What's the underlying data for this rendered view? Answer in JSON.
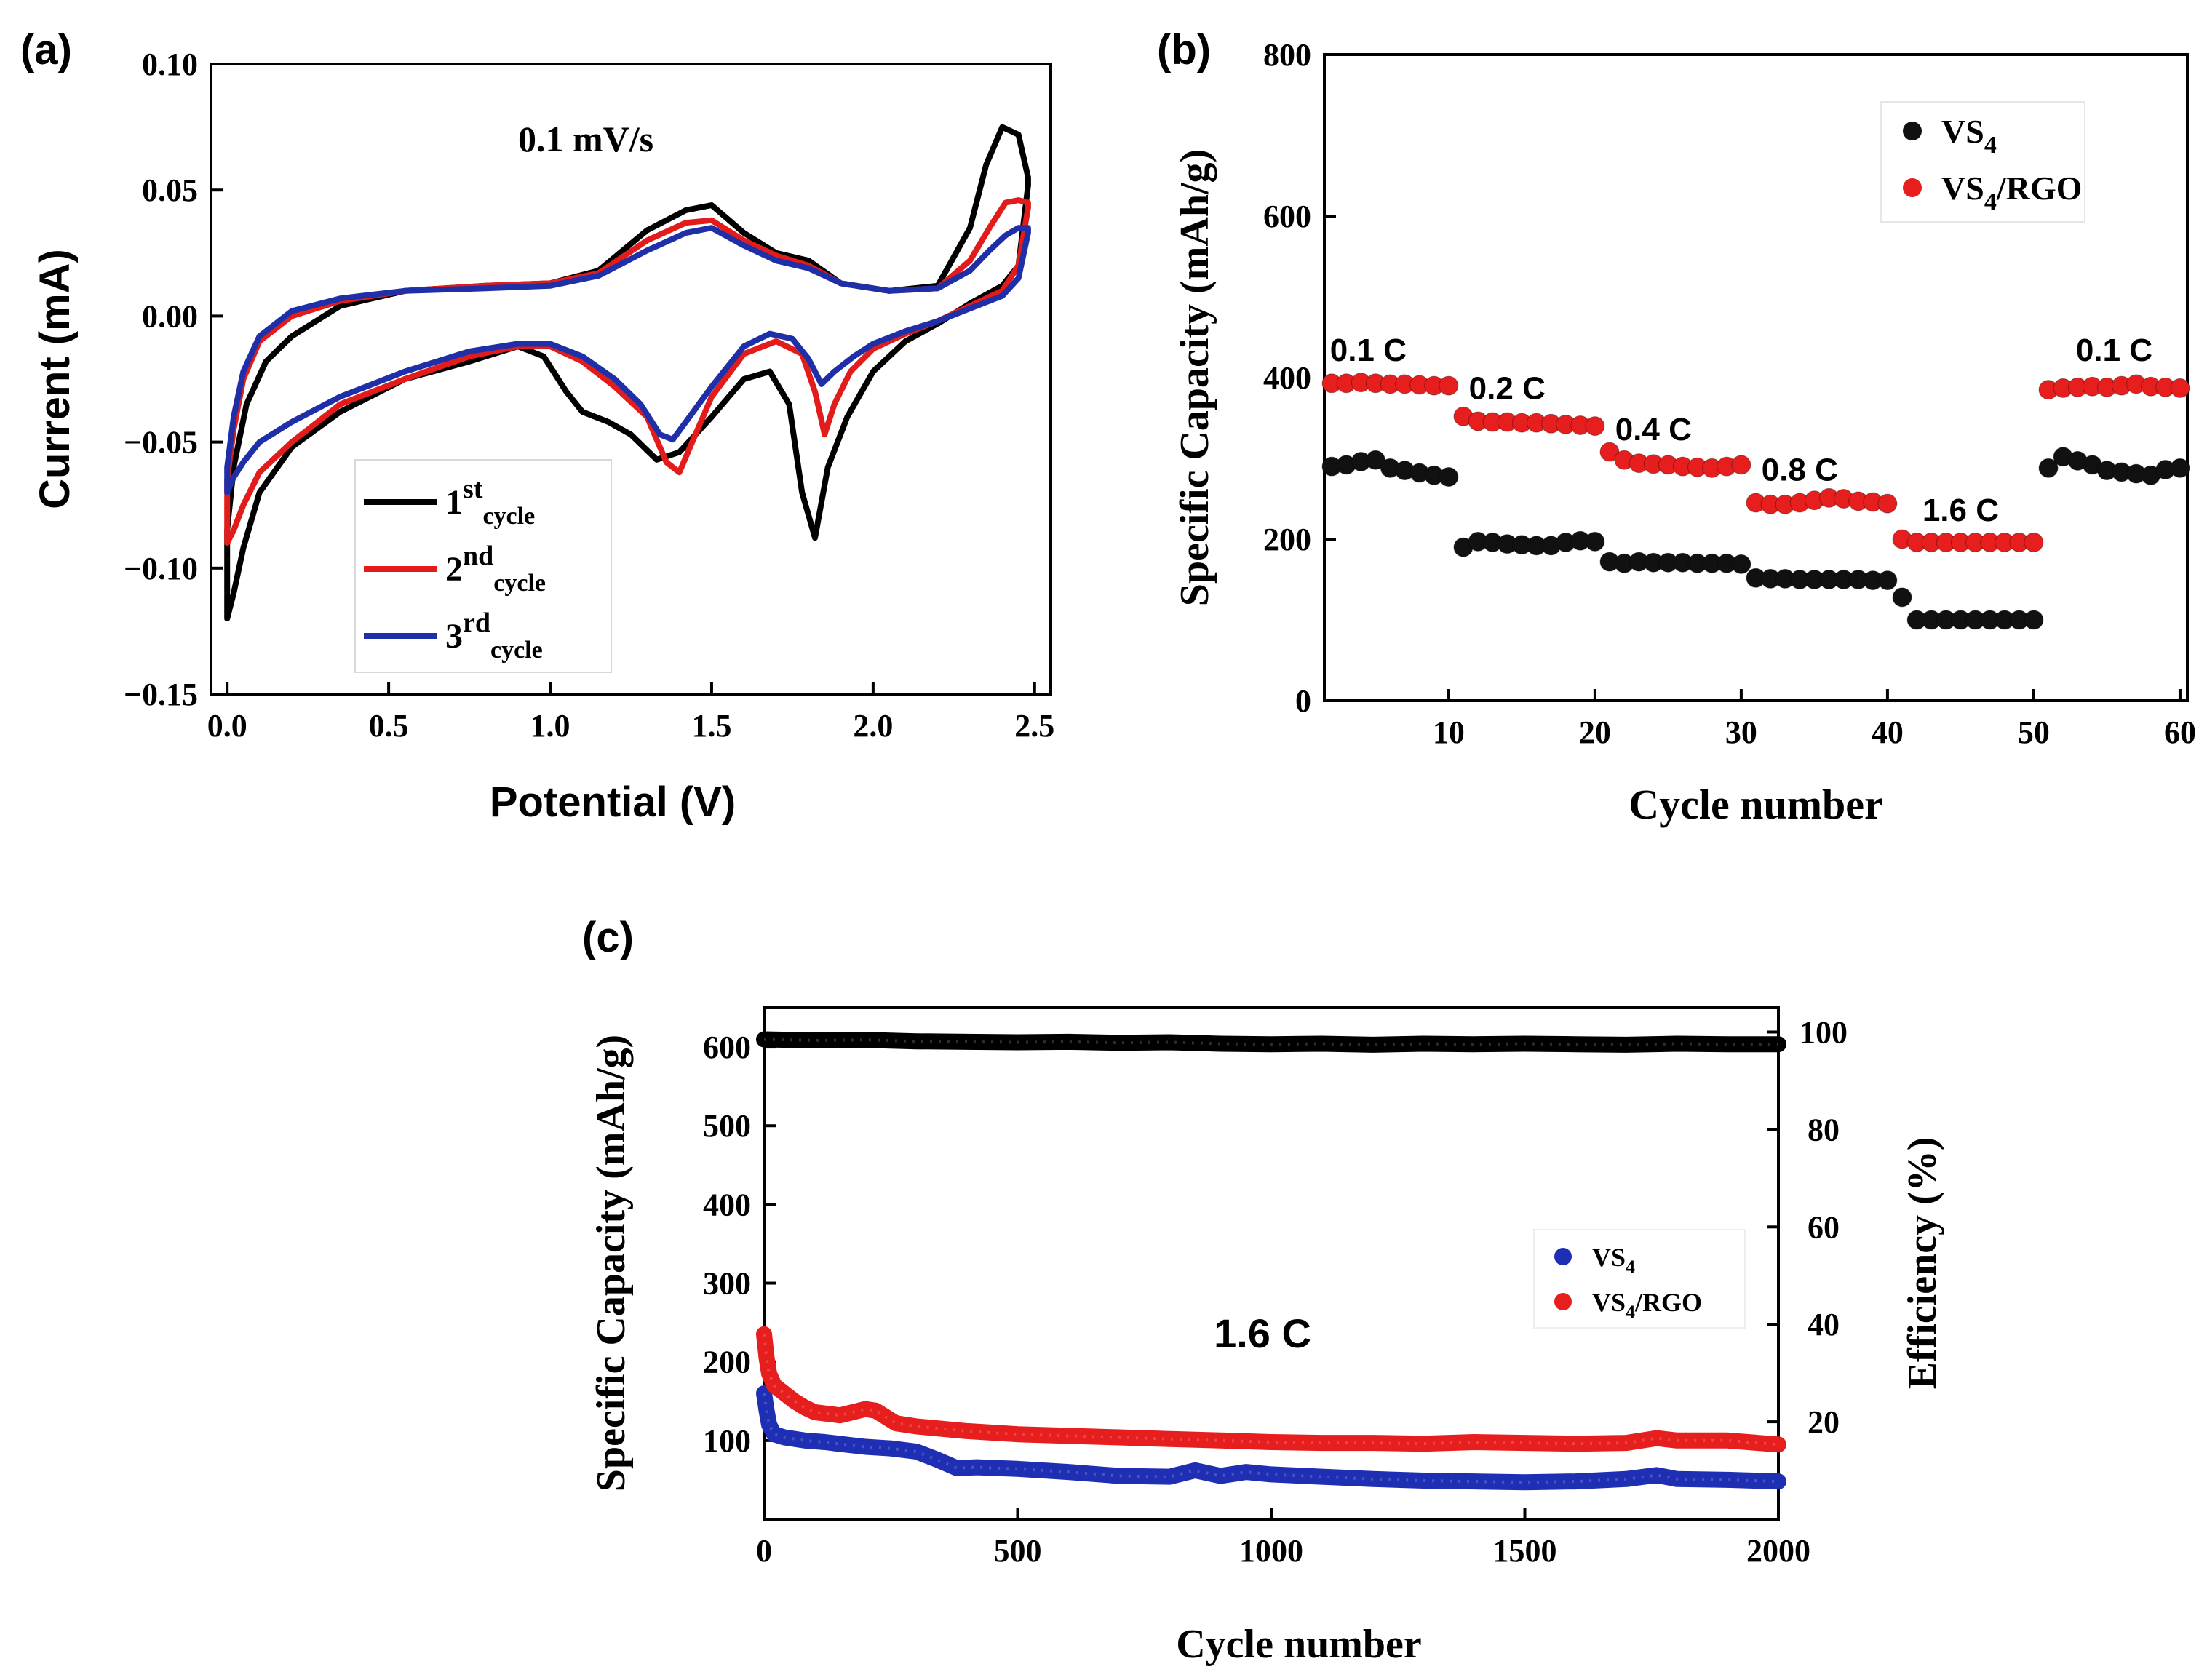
{
  "figure": {
    "panel_labels": [
      "(a)",
      "(b)",
      "(c)"
    ]
  },
  "chart_data": [
    {
      "id": "a",
      "type": "line",
      "annotation": "0.1 mV/s",
      "xlabel": "Potential (V)",
      "ylabel": "Current (mA)",
      "xlim": [
        -0.05,
        2.55
      ],
      "ylim": [
        -0.15,
        0.1
      ],
      "xticks": [
        "0.0",
        "0.5",
        "1.0",
        "1.5",
        "2.0",
        "2.5"
      ],
      "yticks": [
        "-0.15",
        "-0.10",
        "-0.05",
        "0.00",
        "0.05",
        "0.10"
      ],
      "legend_position": "lower-center",
      "series": [
        {
          "name": "1st cycle",
          "base": "1",
          "sup": "st",
          "sub": "cycle",
          "color": "#000000",
          "x": [
            0.0,
            0.02,
            0.06,
            0.12,
            0.2,
            0.35,
            0.55,
            0.8,
            1.0,
            1.15,
            1.3,
            1.42,
            1.5,
            1.6,
            1.7,
            1.8,
            1.9,
            2.05,
            2.2,
            2.3,
            2.35,
            2.4,
            2.45,
            2.48,
            2.48,
            2.45,
            2.4,
            2.3,
            2.2,
            2.1,
            2.0,
            1.92,
            1.86,
            1.82,
            1.78,
            1.74,
            1.68,
            1.6,
            1.5,
            1.4,
            1.33,
            1.25,
            1.18,
            1.1,
            1.05,
            0.98,
            0.9,
            0.75,
            0.55,
            0.35,
            0.2,
            0.1,
            0.05,
            0.02,
            0.0
          ],
          "y": [
            -0.085,
            -0.06,
            -0.035,
            -0.018,
            -0.008,
            0.004,
            0.01,
            0.012,
            0.013,
            0.018,
            0.034,
            0.042,
            0.044,
            0.033,
            0.025,
            0.022,
            0.013,
            0.01,
            0.012,
            0.035,
            0.06,
            0.075,
            0.072,
            0.055,
            0.052,
            0.02,
            0.012,
            0.005,
            -0.003,
            -0.01,
            -0.022,
            -0.04,
            -0.06,
            -0.088,
            -0.07,
            -0.035,
            -0.022,
            -0.025,
            -0.04,
            -0.054,
            -0.057,
            -0.047,
            -0.042,
            -0.038,
            -0.03,
            -0.016,
            -0.012,
            -0.018,
            -0.025,
            -0.038,
            -0.052,
            -0.07,
            -0.092,
            -0.11,
            -0.12
          ]
        },
        {
          "name": "2nd cycle",
          "base": "2",
          "sup": "nd",
          "sub": "cycle",
          "color": "#e21b1b",
          "x": [
            0.0,
            0.02,
            0.05,
            0.1,
            0.2,
            0.35,
            0.55,
            0.8,
            1.0,
            1.15,
            1.3,
            1.42,
            1.5,
            1.6,
            1.7,
            1.8,
            1.9,
            2.05,
            2.2,
            2.3,
            2.36,
            2.41,
            2.45,
            2.48,
            2.48,
            2.45,
            2.4,
            2.3,
            2.2,
            2.1,
            2.0,
            1.93,
            1.88,
            1.85,
            1.82,
            1.78,
            1.7,
            1.6,
            1.5,
            1.44,
            1.4,
            1.36,
            1.3,
            1.2,
            1.1,
            1.0,
            0.9,
            0.75,
            0.55,
            0.35,
            0.2,
            0.1,
            0.05,
            0.02,
            0.0
          ],
          "y": [
            -0.065,
            -0.045,
            -0.025,
            -0.01,
            0.0,
            0.006,
            0.01,
            0.012,
            0.013,
            0.017,
            0.03,
            0.037,
            0.038,
            0.03,
            0.024,
            0.02,
            0.013,
            0.01,
            0.011,
            0.022,
            0.035,
            0.045,
            0.046,
            0.045,
            0.043,
            0.02,
            0.01,
            0.004,
            -0.002,
            -0.007,
            -0.013,
            -0.022,
            -0.035,
            -0.047,
            -0.03,
            -0.015,
            -0.01,
            -0.015,
            -0.032,
            -0.05,
            -0.062,
            -0.058,
            -0.04,
            -0.028,
            -0.018,
            -0.012,
            -0.012,
            -0.016,
            -0.025,
            -0.035,
            -0.05,
            -0.062,
            -0.075,
            -0.085,
            -0.09
          ]
        },
        {
          "name": "3rd cycle",
          "base": "3",
          "sup": "rd",
          "sub": "cycle",
          "color": "#1f2fa8",
          "x": [
            0.0,
            0.02,
            0.05,
            0.1,
            0.2,
            0.35,
            0.55,
            0.8,
            1.0,
            1.15,
            1.3,
            1.42,
            1.5,
            1.6,
            1.7,
            1.8,
            1.9,
            2.05,
            2.2,
            2.3,
            2.36,
            2.41,
            2.45,
            2.48,
            2.48,
            2.45,
            2.4,
            2.3,
            2.2,
            2.1,
            2.0,
            1.94,
            1.88,
            1.84,
            1.8,
            1.75,
            1.68,
            1.6,
            1.5,
            1.42,
            1.38,
            1.34,
            1.28,
            1.2,
            1.1,
            1.0,
            0.9,
            0.75,
            0.55,
            0.35,
            0.2,
            0.1,
            0.05,
            0.02,
            0.0
          ],
          "y": [
            -0.06,
            -0.04,
            -0.022,
            -0.008,
            0.002,
            0.007,
            0.01,
            0.011,
            0.012,
            0.016,
            0.026,
            0.033,
            0.035,
            0.028,
            0.022,
            0.019,
            0.013,
            0.01,
            0.011,
            0.018,
            0.026,
            0.032,
            0.035,
            0.035,
            0.033,
            0.015,
            0.008,
            0.003,
            -0.002,
            -0.006,
            -0.011,
            -0.016,
            -0.022,
            -0.027,
            -0.017,
            -0.009,
            -0.007,
            -0.012,
            -0.028,
            -0.042,
            -0.049,
            -0.047,
            -0.035,
            -0.025,
            -0.016,
            -0.011,
            -0.011,
            -0.014,
            -0.022,
            -0.032,
            -0.042,
            -0.05,
            -0.058,
            -0.064,
            -0.07
          ]
        }
      ]
    },
    {
      "id": "b",
      "type": "scatter",
      "xlabel": "Cycle number",
      "ylabel": "Specific Capacity (mAh/g)",
      "xlim": [
        1.5,
        60.5
      ],
      "ylim": [
        0,
        800
      ],
      "xticks": [
        10,
        20,
        30,
        40,
        50,
        60
      ],
      "yticks": [
        0,
        200,
        400,
        600,
        800
      ],
      "legend_position": "top-right",
      "rate_labels": [
        {
          "text": "0.1 C",
          "x": 4.5,
          "y": 435
        },
        {
          "text": "0.2 C",
          "x": 14,
          "y": 388
        },
        {
          "text": "0.4 C",
          "x": 24,
          "y": 337
        },
        {
          "text": "0.8 C",
          "x": 34,
          "y": 287
        },
        {
          "text": "1.6 C",
          "x": 45,
          "y": 237
        },
        {
          "text": "0.1 C",
          "x": 55.5,
          "y": 435
        }
      ],
      "series": [
        {
          "name": "VS4",
          "base": "VS",
          "sub": "4",
          "suffix": "",
          "color": "#111111",
          "x": [
            2,
            3,
            4,
            5,
            6,
            7,
            8,
            9,
            10,
            11,
            12,
            13,
            14,
            15,
            16,
            17,
            18,
            19,
            20,
            21,
            22,
            23,
            24,
            25,
            26,
            27,
            28,
            29,
            30,
            31,
            32,
            33,
            34,
            35,
            36,
            37,
            38,
            39,
            40,
            41,
            42,
            43,
            44,
            45,
            46,
            47,
            48,
            49,
            50,
            51,
            52,
            53,
            54,
            55,
            56,
            57,
            58,
            59,
            60
          ],
          "y": [
            290,
            292,
            296,
            298,
            288,
            285,
            282,
            279,
            277,
            190,
            197,
            196,
            194,
            193,
            192,
            192,
            196,
            198,
            197,
            172,
            170,
            172,
            171,
            171,
            171,
            170,
            170,
            170,
            169,
            152,
            151,
            151,
            150,
            150,
            150,
            150,
            150,
            149,
            149,
            128,
            100,
            100,
            100,
            100,
            100,
            100,
            100,
            100,
            100,
            288,
            302,
            297,
            292,
            285,
            283,
            281,
            279,
            286,
            288
          ]
        },
        {
          "name": "VS4/RGO",
          "base": "VS",
          "sub": "4",
          "suffix": "/RGO",
          "color": "#e61e1e",
          "x": [
            2,
            3,
            4,
            5,
            6,
            7,
            8,
            9,
            10,
            11,
            12,
            13,
            14,
            15,
            16,
            17,
            18,
            19,
            20,
            21,
            22,
            23,
            24,
            25,
            26,
            27,
            28,
            29,
            30,
            31,
            32,
            33,
            34,
            35,
            36,
            37,
            38,
            39,
            40,
            41,
            42,
            43,
            44,
            45,
            46,
            47,
            48,
            49,
            50,
            51,
            52,
            53,
            54,
            55,
            56,
            57,
            58,
            59,
            60
          ],
          "y": [
            393,
            393,
            394,
            393,
            392,
            392,
            391,
            390,
            390,
            352,
            346,
            345,
            345,
            344,
            344,
            343,
            342,
            341,
            340,
            308,
            298,
            294,
            293,
            292,
            290,
            289,
            288,
            290,
            292,
            245,
            243,
            243,
            245,
            248,
            251,
            250,
            247,
            246,
            244,
            200,
            196,
            196,
            196,
            196,
            196,
            196,
            196,
            196,
            196,
            385,
            387,
            388,
            389,
            388,
            390,
            392,
            389,
            388,
            387
          ]
        }
      ]
    },
    {
      "id": "c",
      "type": "scatter",
      "annotation": "1.6 C",
      "xlabel": "Cycle number",
      "ylabel": "Specific Capacity (mAh/g)",
      "ylabel_right": "Efficiency (%)",
      "xlim": [
        0,
        2000
      ],
      "ylim": [
        0,
        650
      ],
      "ylim_right": [
        0,
        105
      ],
      "xticks": [
        0,
        500,
        1000,
        1500,
        2000
      ],
      "yticks": [
        100,
        200,
        300,
        400,
        500,
        600
      ],
      "yticks_right": [
        20,
        40,
        60,
        80,
        100
      ],
      "legend_position": "center-right",
      "series": [
        {
          "name": "Efficiency",
          "axis": "right",
          "color": "#000000",
          "x": [
            0,
            100,
            200,
            300,
            400,
            500,
            600,
            700,
            800,
            900,
            1000,
            1100,
            1200,
            1300,
            1400,
            1500,
            1600,
            1700,
            1800,
            1900,
            2000
          ],
          "y": [
            98.5,
            98.3,
            98.4,
            98.1,
            98,
            97.9,
            98,
            97.8,
            97.9,
            97.6,
            97.5,
            97.6,
            97.4,
            97.6,
            97.5,
            97.6,
            97.5,
            97.4,
            97.6,
            97.5,
            97.5
          ]
        },
        {
          "name": "VS4",
          "base": "VS",
          "sub": "4",
          "suffix": "",
          "color": "#1f2fb4",
          "x": [
            0,
            5,
            10,
            20,
            40,
            80,
            120,
            160,
            200,
            250,
            300,
            340,
            380,
            420,
            460,
            500,
            600,
            700,
            800,
            850,
            900,
            950,
            1000,
            1100,
            1200,
            1300,
            1400,
            1500,
            1600,
            1700,
            1760,
            1800,
            1900,
            2000
          ],
          "y": [
            160,
            138,
            120,
            108,
            104,
            100,
            98,
            95,
            92,
            90,
            86,
            76,
            65,
            66,
            65,
            64,
            60,
            55,
            54,
            62,
            55,
            60,
            57,
            54,
            51,
            49,
            48,
            47,
            48,
            51,
            56,
            51,
            50,
            48
          ]
        },
        {
          "name": "VS4/RGO",
          "base": "VS",
          "sub": "4",
          "suffix": "/RGO",
          "color": "#e61e1e",
          "x": [
            0,
            5,
            10,
            20,
            40,
            60,
            80,
            100,
            150,
            200,
            220,
            260,
            300,
            400,
            500,
            600,
            700,
            800,
            900,
            1000,
            1100,
            1200,
            1300,
            1400,
            1500,
            1600,
            1700,
            1760,
            1800,
            1900,
            2000
          ],
          "y": [
            235,
            205,
            185,
            170,
            160,
            150,
            142,
            136,
            132,
            140,
            138,
            122,
            118,
            112,
            108,
            106,
            104,
            102,
            100,
            98,
            97,
            97,
            96,
            98,
            97,
            96,
            97,
            103,
            100,
            100,
            95
          ]
        }
      ]
    }
  ]
}
